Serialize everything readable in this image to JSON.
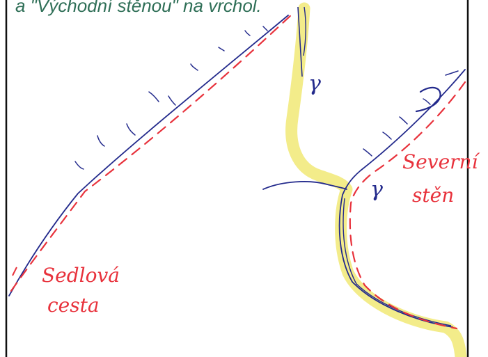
{
  "caption": "a \"Východní stěnou\" na vrchol.",
  "labels": {
    "saddle_route": [
      "Sedlová",
      "cesta"
    ],
    "north_wall": [
      "Severní",
      "stěn"
    ],
    "gully_mark_top": "γ",
    "gully_mark_mid": "γ"
  },
  "colors": {
    "ridge_line": "#232a8c",
    "route_dashed": "#e8323c",
    "gully_fill": "#f3ec8a",
    "label_red": "#e8323c",
    "caption_text": "#2f6f57"
  }
}
